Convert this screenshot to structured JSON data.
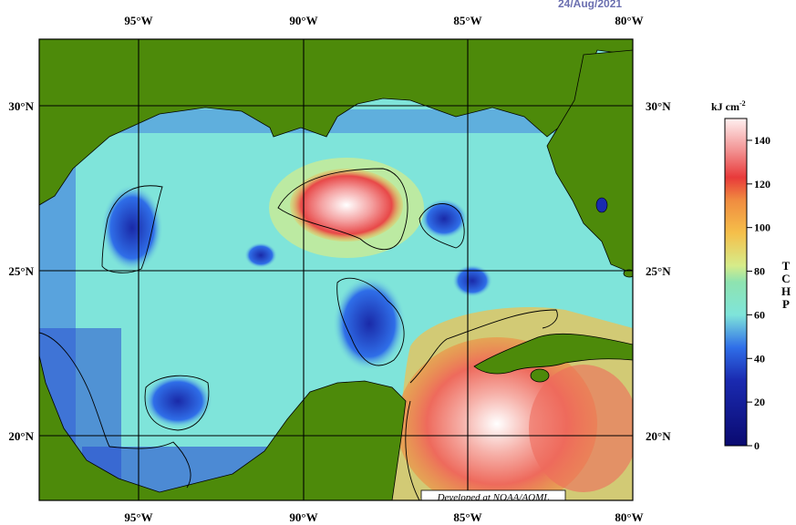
{
  "date": "24/Aug/2021",
  "credit": "Developed at NOAA/AOML",
  "lon_labels": [
    "95°W",
    "90°W",
    "85°W",
    "80°W"
  ],
  "lat_labels": [
    "30°N",
    "25°N",
    "20°N"
  ],
  "colorbar": {
    "unit": "kJ cm",
    "unit_exp": "-2",
    "title_letters": [
      "T",
      "C",
      "H",
      "P"
    ],
    "ticks": [
      "140",
      "120",
      "100",
      "80",
      "60",
      "40",
      "20",
      "0"
    ],
    "range": [
      0,
      150
    ]
  },
  "colors": {
    "land": "#4d8a0a",
    "water_low": "#1a1aa0",
    "water_mid": "#7fe4da",
    "warm": "#f06a60",
    "hot": "#ffffff"
  }
}
